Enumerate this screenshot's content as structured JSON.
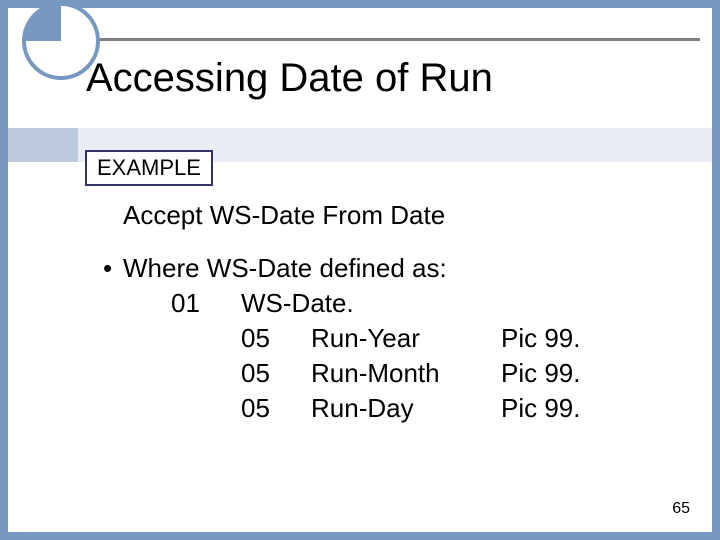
{
  "colors": {
    "slide_bg": "#ffffff",
    "page_bg": "#7698c1",
    "circle_border": "#7698c1",
    "circle_fill": "#7698c1",
    "rule": "#808080",
    "band_left": "#bec9dc",
    "band_right": "#e8ecf3",
    "example_border": "#333366",
    "text": "#000000"
  },
  "typography": {
    "title_fontsize": 40,
    "body_fontsize": 26,
    "example_fontsize": 22,
    "pagenum_fontsize": 16,
    "font_family": "Arial"
  },
  "title": "Accessing Date of Run",
  "example_label": "EXAMPLE",
  "accept_line": "Accept WS-Date From Date",
  "bullet_text": "Where WS-Date defined as:",
  "definition": {
    "top": {
      "level": "01",
      "name": "WS-Date."
    },
    "fields": [
      {
        "level": "05",
        "name": "Run-Year",
        "pic": "Pic 99."
      },
      {
        "level": "05",
        "name": "Run-Month",
        "pic": "Pic 99."
      },
      {
        "level": "05",
        "name": "Run-Day",
        "pic": "Pic 99."
      }
    ]
  },
  "page_number": "65"
}
